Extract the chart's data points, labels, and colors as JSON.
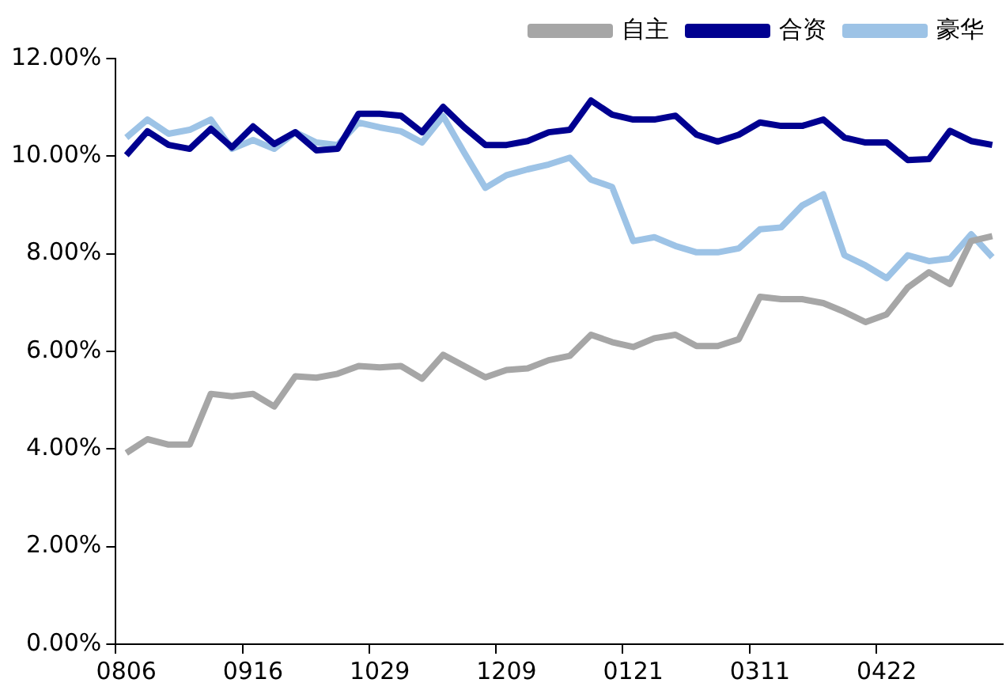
{
  "chart_data": {
    "type": "line",
    "categories": [
      "0806",
      null,
      null,
      null,
      null,
      null,
      "0916",
      null,
      null,
      null,
      null,
      null,
      "1029",
      null,
      null,
      null,
      null,
      null,
      "1209",
      null,
      null,
      null,
      null,
      null,
      "0121",
      null,
      null,
      null,
      null,
      null,
      "0311",
      null,
      null,
      null,
      null,
      null,
      "0422",
      null,
      null,
      null,
      null,
      null
    ],
    "series": [
      {
        "name": "自主",
        "color": "#a6a6a6",
        "values": [
          3.92,
          4.2,
          4.09,
          4.09,
          5.13,
          5.08,
          5.13,
          4.87,
          5.49,
          5.46,
          5.54,
          5.7,
          5.67,
          5.7,
          5.44,
          5.93,
          5.7,
          5.47,
          5.62,
          5.65,
          5.82,
          5.91,
          6.34,
          6.19,
          6.09,
          6.27,
          6.34,
          6.11,
          6.11,
          6.25,
          7.12,
          7.07,
          7.07,
          6.99,
          6.81,
          6.6,
          6.76,
          7.31,
          7.62,
          7.38,
          8.26,
          8.36
        ]
      },
      {
        "name": "合资",
        "color": "#000090",
        "values": [
          10.02,
          10.51,
          10.23,
          10.15,
          10.56,
          10.18,
          10.61,
          10.25,
          10.49,
          10.12,
          10.15,
          10.87,
          10.87,
          10.83,
          10.49,
          11.01,
          10.59,
          10.23,
          10.23,
          10.31,
          10.49,
          10.54,
          11.14,
          10.85,
          10.75,
          10.75,
          10.83,
          10.44,
          10.3,
          10.44,
          10.69,
          10.62,
          10.62,
          10.75,
          10.38,
          10.28,
          10.28,
          9.92,
          9.94,
          10.52,
          10.31,
          10.23
        ]
      },
      {
        "name": "豪华",
        "color": "#9dc3e6",
        "values": [
          10.38,
          10.75,
          10.46,
          10.54,
          10.75,
          10.15,
          10.33,
          10.15,
          10.49,
          10.28,
          10.23,
          10.69,
          10.59,
          10.51,
          10.28,
          10.82,
          10.07,
          9.35,
          9.61,
          9.73,
          9.83,
          9.97,
          9.52,
          9.37,
          8.26,
          8.34,
          8.16,
          8.03,
          8.03,
          8.11,
          8.5,
          8.54,
          8.99,
          9.22,
          7.97,
          7.76,
          7.5,
          7.97,
          7.85,
          7.9,
          8.4,
          7.93
        ]
      }
    ],
    "ylim": [
      0,
      12
    ],
    "yticks": [
      {
        "value": 0,
        "label": "0.00%"
      },
      {
        "value": 2,
        "label": "2.00%"
      },
      {
        "value": 4,
        "label": "4.00%"
      },
      {
        "value": 6,
        "label": "6.00%"
      },
      {
        "value": 8,
        "label": "8.00%"
      },
      {
        "value": 10,
        "label": "10.00%"
      },
      {
        "value": 12,
        "label": "12.00%"
      }
    ],
    "grid": false,
    "legend": "top right",
    "marker": "none",
    "line_style": "solid"
  }
}
